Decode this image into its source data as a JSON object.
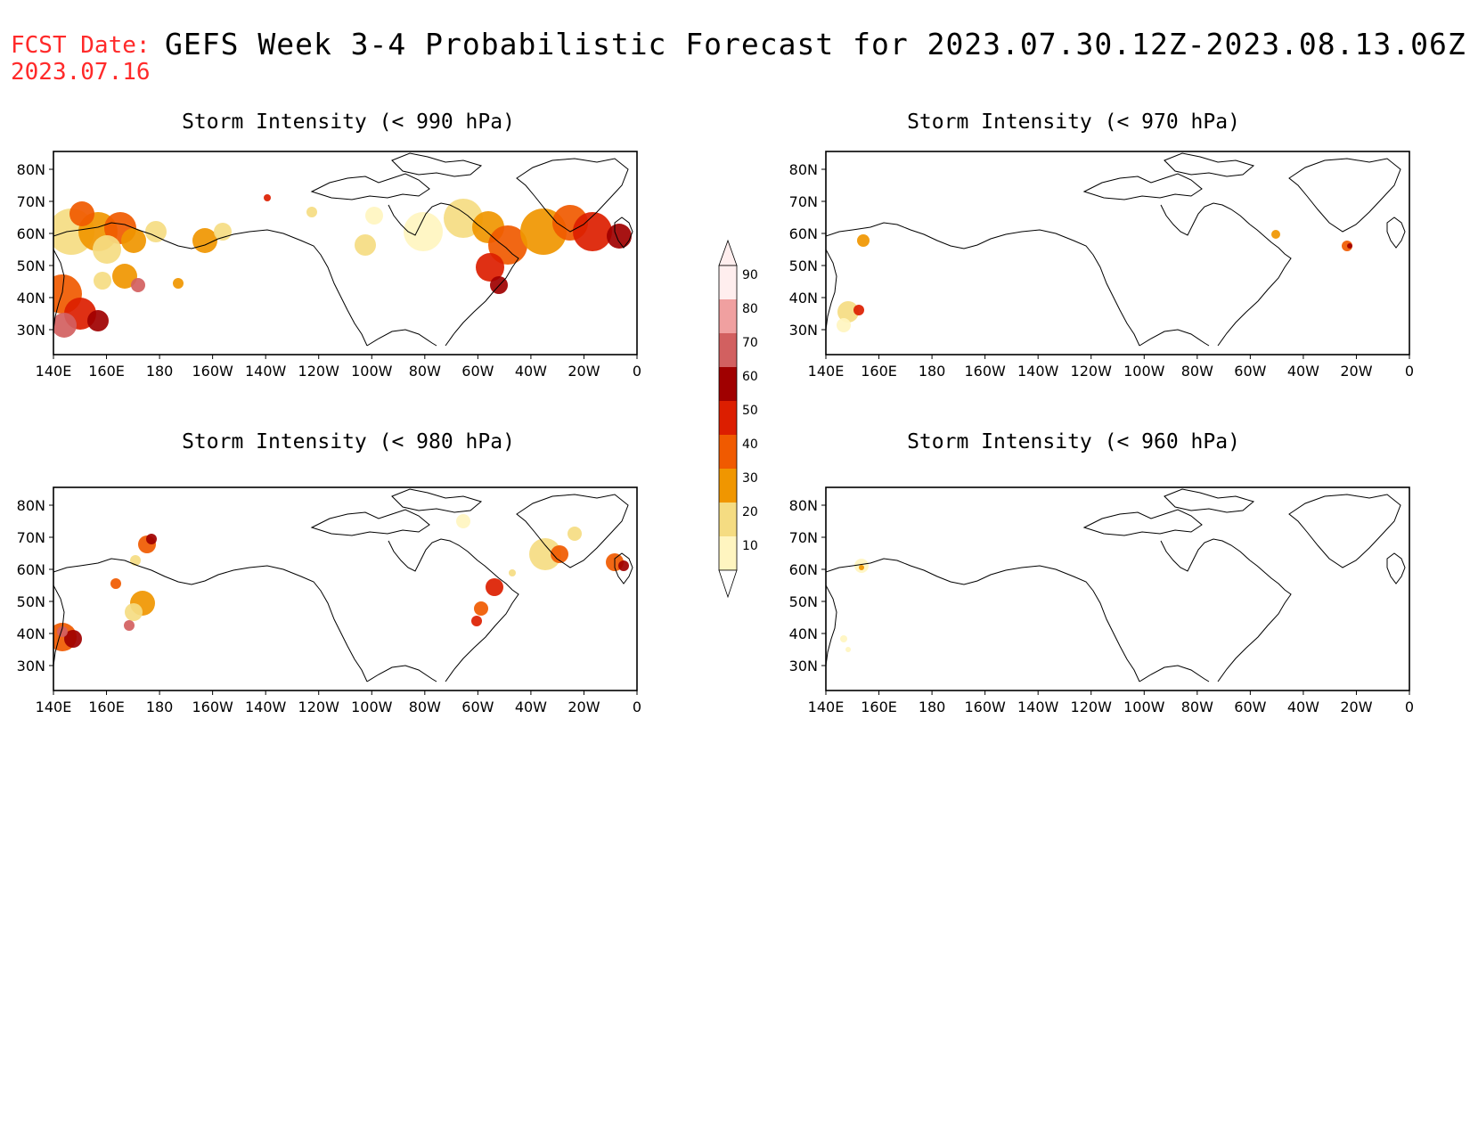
{
  "header": {
    "fcst_label": "FCST Date:",
    "fcst_date": "2023.07.16",
    "title": "GEFS Week 3-4 Probabilistic Forecast for 2023.07.30.12Z-2023.08.13.06Z"
  },
  "axes": {
    "x_ticks": [
      "140E",
      "160E",
      "180",
      "160W",
      "140W",
      "120W",
      "100W",
      "80W",
      "60W",
      "40W",
      "20W",
      "0"
    ],
    "y_ticks": [
      "80N",
      "70N",
      "60N",
      "50N",
      "40N",
      "30N"
    ]
  },
  "panels": [
    {
      "title": "Storm Intensity (< 990 hPa)"
    },
    {
      "title": "Storm Intensity (< 970 hPa)"
    },
    {
      "title": "Storm Intensity (< 980 hPa)"
    },
    {
      "title": "Storm Intensity (< 960 hPa)"
    }
  ],
  "colorbar": {
    "labels": [
      "90",
      "80",
      "70",
      "60",
      "50",
      "40",
      "30",
      "20",
      "10"
    ],
    "colors": [
      "#ffeeee",
      "#f0a0a0",
      "#d26060",
      "#a00000",
      "#dc1e00",
      "#f05a00",
      "#f09600",
      "#f5dc82",
      "#fff5c0"
    ]
  },
  "colors": {
    "fcst_date": "#ff2a2a",
    "coast": "#000000"
  }
}
